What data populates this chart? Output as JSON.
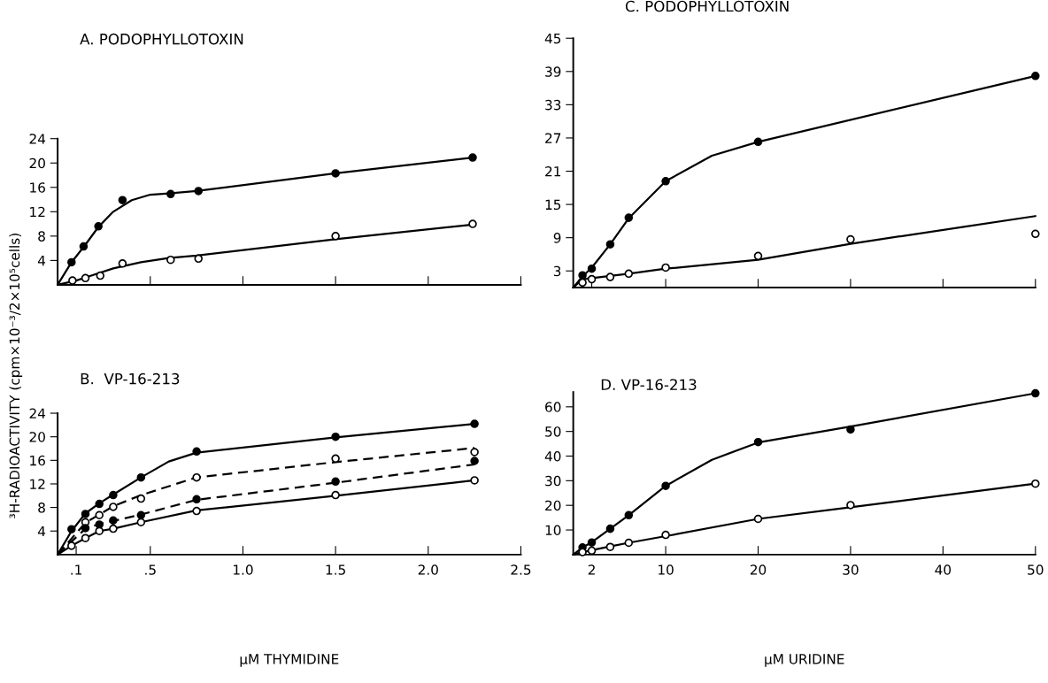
{
  "chart_data": [
    {
      "type": "line",
      "title": "A. PODOPHYLLOTOXIN",
      "ylabel": "³H-RADIOACTIVITY (cpm×10⁻³/2×10⁵cells)",
      "xlim": [
        0,
        2.5
      ],
      "ylim": [
        0,
        24
      ],
      "xticks": [
        {
          "value": 0.5,
          "label": null
        },
        {
          "value": 1.0,
          "label": null
        },
        {
          "value": 1.5,
          "label": null
        },
        {
          "value": 2.0,
          "label": null
        },
        {
          "value": 2.5,
          "label": null
        }
      ],
      "yticks": [
        4,
        8,
        12,
        16,
        20,
        24
      ],
      "tick_labels": "y",
      "series": [
        {
          "type": "scatter",
          "marker": "circle",
          "color": "#000000",
          "x": [
            0.075,
            0.14,
            0.22,
            0.35,
            0.61,
            0.76,
            1.5,
            2.24
          ],
          "values": [
            3.7,
            6.3,
            9.6,
            13.9,
            14.9,
            15.4,
            18.3,
            20.9
          ]
        },
        {
          "type": "scatter",
          "marker": "circle",
          "color": "#ffffff",
          "x": [
            0.08,
            0.15,
            0.23,
            0.35,
            0.61,
            0.76,
            1.5,
            2.24
          ],
          "values": [
            0.7,
            1.1,
            1.5,
            3.5,
            4.1,
            4.3,
            8.0,
            10.0
          ]
        },
        {
          "marker": "none",
          "line_style": "solid",
          "color": "#000000",
          "x": [
            0,
            0.075,
            0.15,
            0.22,
            0.3,
            0.4,
            0.5,
            0.6,
            0.75,
            1.5,
            2.24
          ],
          "values": [
            0,
            3.7,
            6.6,
            9.5,
            12.0,
            13.9,
            14.8,
            15.0,
            15.4,
            18.3,
            20.9
          ]
        },
        {
          "marker": "none",
          "line_style": "solid",
          "color": "#000000",
          "x": [
            0,
            0.1,
            0.2,
            0.3,
            0.45,
            0.6,
            0.75,
            1.5,
            2.24
          ],
          "values": [
            0,
            0.7,
            1.7,
            2.7,
            3.7,
            4.4,
            4.8,
            7.5,
            9.9
          ]
        }
      ]
    },
    {
      "type": "line",
      "title": "B.  VP-16-213",
      "xlabel": "μM THYMIDINE",
      "xlim": [
        0,
        2.5
      ],
      "ylim": [
        0,
        24
      ],
      "xticks": [
        {
          "value": 0.1,
          "label": ".1"
        },
        {
          "value": 0.5,
          "label": ".5"
        },
        {
          "value": 1.0,
          "label": "1.0"
        },
        {
          "value": 1.5,
          "label": "1.5"
        },
        {
          "value": 2.0,
          "label": "2.0"
        },
        {
          "value": 2.5,
          "label": "2.5"
        }
      ],
      "yticks": [
        4,
        8,
        12,
        16,
        20,
        24
      ],
      "series": [
        {
          "type": "scatter",
          "marker": "circle",
          "color": "#000000",
          "x": [
            0.075,
            0.15,
            0.225,
            0.3,
            0.45,
            0.75,
            1.5,
            2.25
          ],
          "values": [
            4.3,
            6.9,
            8.6,
            10.1,
            13.1,
            17.5,
            20.0,
            22.2
          ]
        },
        {
          "type": "scatter",
          "marker": "circle",
          "color": "#ffffff",
          "x": [
            0.15,
            0.225,
            0.3,
            0.45,
            0.75,
            1.5,
            2.25
          ],
          "values": [
            5.5,
            6.7,
            8.1,
            9.5,
            13.1,
            16.3,
            17.4
          ]
        },
        {
          "type": "scatter",
          "marker": "circle",
          "color": "#000000",
          "x": [
            0.15,
            0.225,
            0.3,
            0.45,
            0.75,
            1.5,
            2.25
          ],
          "values": [
            4.5,
            5.1,
            5.8,
            6.7,
            9.4,
            12.4,
            15.9
          ]
        },
        {
          "type": "scatter",
          "marker": "circle",
          "color": "#ffffff",
          "x": [
            0.075,
            0.15,
            0.225,
            0.3,
            0.45,
            0.75,
            1.5,
            2.25
          ],
          "values": [
            1.5,
            2.8,
            4.0,
            4.4,
            5.5,
            7.4,
            10.1,
            12.6
          ]
        },
        {
          "marker": "none",
          "line_style": "solid",
          "color": "#000000",
          "x": [
            0,
            0.075,
            0.15,
            0.225,
            0.3,
            0.45,
            0.6,
            0.75,
            1.5,
            2.25
          ],
          "values": [
            0,
            4.0,
            7.0,
            8.7,
            10.2,
            13.1,
            15.8,
            17.3,
            19.9,
            22.2
          ]
        },
        {
          "marker": "none",
          "line_style": "dashed",
          "color": "#000000",
          "x": [
            0,
            0.15,
            0.225,
            0.3,
            0.45,
            0.75,
            1.5,
            2.25
          ],
          "values": [
            0,
            5.4,
            6.8,
            8.2,
            10.1,
            13.1,
            15.7,
            18.1
          ]
        },
        {
          "marker": "none",
          "line_style": "dashed",
          "color": "#000000",
          "x": [
            0,
            0.15,
            0.225,
            0.3,
            0.45,
            0.75,
            1.5,
            2.25
          ],
          "values": [
            0,
            4.4,
            5.2,
            5.7,
            6.8,
            9.3,
            12.2,
            15.3
          ]
        },
        {
          "marker": "none",
          "line_style": "solid",
          "color": "#000000",
          "x": [
            0,
            0.075,
            0.15,
            0.225,
            0.3,
            0.45,
            0.75,
            1.5,
            2.25
          ],
          "values": [
            0,
            1.5,
            2.8,
            4.0,
            4.4,
            5.5,
            7.5,
            10.0,
            12.6
          ]
        }
      ]
    },
    {
      "type": "line",
      "title": "C. PODOPHYLLOTOXIN",
      "xlim": [
        0,
        50
      ],
      "ylim": [
        0,
        45
      ],
      "xticks": [
        {
          "value": 2,
          "label": null
        },
        {
          "value": 10,
          "label": null
        },
        {
          "value": 20,
          "label": null
        },
        {
          "value": 30,
          "label": null
        },
        {
          "value": 40,
          "label": null
        },
        {
          "value": 50,
          "label": null
        }
      ],
      "yticks": [
        3,
        9,
        15,
        21,
        27,
        33,
        39,
        45
      ],
      "tick_labels": "y",
      "series": [
        {
          "type": "scatter",
          "marker": "circle",
          "color": "#000000",
          "x": [
            1,
            2,
            4,
            6,
            10,
            20,
            50
          ],
          "values": [
            2.2,
            3.4,
            7.8,
            12.6,
            19.2,
            26.3,
            38.2
          ]
        },
        {
          "type": "scatter",
          "marker": "circle",
          "color": "#ffffff",
          "x": [
            1,
            2,
            4,
            6,
            10,
            20,
            30,
            50
          ],
          "values": [
            0.9,
            1.5,
            1.9,
            2.5,
            3.6,
            5.7,
            8.7,
            9.7
          ]
        },
        {
          "marker": "none",
          "line_style": "solid",
          "color": "#000000",
          "x": [
            0,
            1,
            2,
            4,
            6,
            10,
            15,
            20,
            50
          ],
          "values": [
            0,
            2.0,
            3.6,
            7.8,
            12.5,
            19.2,
            23.8,
            26.3,
            38.2
          ]
        },
        {
          "marker": "none",
          "line_style": "solid",
          "color": "#000000",
          "x": [
            0,
            1,
            2,
            6,
            10,
            20,
            30,
            50
          ],
          "values": [
            0,
            1.5,
            1.7,
            2.5,
            3.4,
            5.0,
            7.9,
            12.9
          ]
        }
      ]
    },
    {
      "type": "line",
      "title": "D. VP-16-213",
      "xlabel": "μM URIDINE",
      "xlim": [
        0,
        50
      ],
      "ylim": [
        0,
        66
      ],
      "xticks": [
        2,
        10,
        20,
        30,
        40,
        50
      ],
      "yticks": [
        10,
        20,
        30,
        40,
        50,
        60
      ],
      "series": [
        {
          "type": "scatter",
          "marker": "circle",
          "color": "#000000",
          "x": [
            1,
            2,
            4,
            6,
            10,
            20,
            30,
            50
          ],
          "values": [
            2.9,
            4.9,
            10.5,
            16.0,
            27.9,
            45.7,
            50.8,
            65.5
          ]
        },
        {
          "type": "scatter",
          "marker": "circle",
          "color": "#ffffff",
          "x": [
            1,
            2,
            4,
            6,
            10,
            20,
            30,
            50
          ],
          "values": [
            1.0,
            1.6,
            3.1,
            4.8,
            8.0,
            14.5,
            20.1,
            28.8
          ]
        },
        {
          "marker": "none",
          "line_style": "solid",
          "color": "#000000",
          "x": [
            0,
            1,
            2,
            4,
            6,
            10,
            15,
            20,
            30,
            50
          ],
          "values": [
            0,
            2.9,
            5.0,
            10.5,
            16.0,
            27.9,
            38.5,
            45.5,
            52.0,
            65.5
          ]
        },
        {
          "marker": "none",
          "line_style": "solid",
          "color": "#000000",
          "x": [
            0,
            1,
            2,
            4,
            6,
            10,
            20,
            30,
            50
          ],
          "values": [
            0,
            1.0,
            1.8,
            3.3,
            4.8,
            7.5,
            14.5,
            19.2,
            28.8
          ]
        }
      ]
    }
  ]
}
